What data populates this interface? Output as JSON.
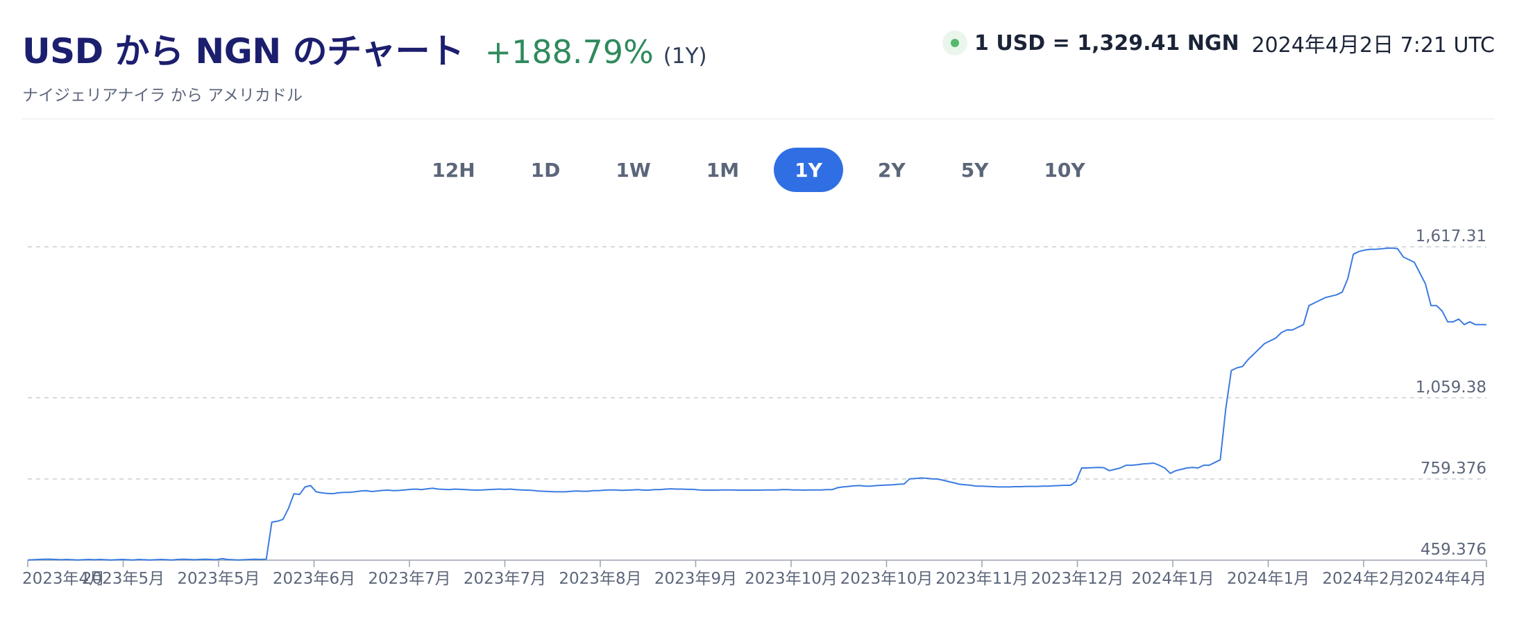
{
  "header": {
    "title": "USD から NGN のチャート",
    "change": "+188.79%",
    "period": "(1Y)",
    "subtitle": "ナイジェリアナイラ から アメリカドル",
    "rate": "1 USD = 1,329.41 NGN",
    "datetime": "2024年4月2日 7:21 UTC"
  },
  "periods": [
    {
      "label": "12H",
      "active": false
    },
    {
      "label": "1D",
      "active": false
    },
    {
      "label": "1W",
      "active": false
    },
    {
      "label": "1M",
      "active": false
    },
    {
      "label": "1Y",
      "active": true
    },
    {
      "label": "2Y",
      "active": false
    },
    {
      "label": "5Y",
      "active": false
    },
    {
      "label": "10Y",
      "active": false
    }
  ],
  "colors": {
    "title": "#1c1e6e",
    "change_positive": "#2f8a5d",
    "accent": "#2f6fe3",
    "line": "#3a7be0",
    "live_dot": "#56b86a"
  },
  "chart_data": {
    "type": "line",
    "title": "",
    "xlabel": "",
    "ylabel": "",
    "ylim": [
      459.376,
      1617.31
    ],
    "y_ticks": [
      "1,617.31",
      "1,059.38",
      "759.376",
      "459.376"
    ],
    "y_tick_values": [
      1617.31,
      1059.38,
      759.376,
      459.376
    ],
    "x_ticks": [
      "2023年4月",
      "2023年5月",
      "2023年5月",
      "2023年6月",
      "2023年7月",
      "2023年7月",
      "2023年8月",
      "2023年9月",
      "2023年10月",
      "2023年10月",
      "2023年11月",
      "2023年12月",
      "2024年1月",
      "2024年1月",
      "2024年2月",
      "2024年4月"
    ],
    "grid": "horizontal dashed",
    "series": [
      {
        "values": [
          460,
          461,
          462,
          463,
          463,
          462,
          461,
          462,
          461,
          460,
          461,
          462,
          461,
          462,
          461,
          460,
          461,
          462,
          461,
          460,
          462,
          461,
          460,
          461,
          462,
          461,
          460,
          462,
          463,
          462,
          461,
          462,
          463,
          462,
          461,
          465,
          462,
          461,
          460,
          461,
          462,
          463,
          462,
          463,
          600,
          603,
          610,
          650,
          705,
          702,
          730,
          735,
          712,
          708,
          706,
          705,
          708,
          710,
          710,
          712,
          715,
          716,
          713,
          715,
          717,
          718,
          716,
          717,
          719,
          721,
          722,
          720,
          723,
          725,
          722,
          721,
          720,
          722,
          721,
          720,
          719,
          718,
          719,
          720,
          721,
          722,
          721,
          722,
          720,
          719,
          718,
          717,
          715,
          714,
          713,
          712,
          712,
          712,
          714,
          715,
          714,
          714,
          716,
          716,
          718,
          719,
          719,
          717,
          718,
          719,
          720,
          718,
          718,
          720,
          720,
          722,
          723,
          722,
          722,
          721,
          721,
          719,
          718,
          718,
          718,
          719,
          719,
          719,
          718,
          718,
          718,
          718,
          718,
          719,
          719,
          719,
          720,
          720,
          719,
          719,
          718,
          719,
          719,
          719,
          720,
          720,
          727,
          730,
          732,
          734,
          735,
          733,
          733,
          735,
          736,
          737,
          738,
          740,
          741,
          760,
          761,
          763,
          762,
          760,
          759,
          755,
          750,
          745,
          740,
          738,
          736,
          733,
          733,
          732,
          731,
          730,
          730,
          730,
          731,
          731,
          732,
          732,
          732,
          733,
          733,
          734,
          735,
          736,
          736,
          750,
          800,
          800,
          801,
          802,
          801,
          790,
          795,
          800,
          810,
          810,
          812,
          815,
          816,
          818,
          810,
          800,
          780,
          790,
          795,
          800,
          802,
          800,
          810,
          810,
          820,
          830,
          1020,
          1160,
          1170,
          1175,
          1200,
          1220,
          1240,
          1260,
          1270,
          1280,
          1300,
          1310,
          1310,
          1320,
          1330,
          1400,
          1410,
          1420,
          1430,
          1435,
          1440,
          1450,
          1500,
          1590,
          1600,
          1605,
          1608,
          1608,
          1610,
          1612,
          1613,
          1610,
          1580,
          1570,
          1560,
          1520,
          1480,
          1400,
          1400,
          1380,
          1340,
          1340,
          1350,
          1330,
          1340,
          1330,
          1330,
          1329.41
        ]
      }
    ]
  }
}
